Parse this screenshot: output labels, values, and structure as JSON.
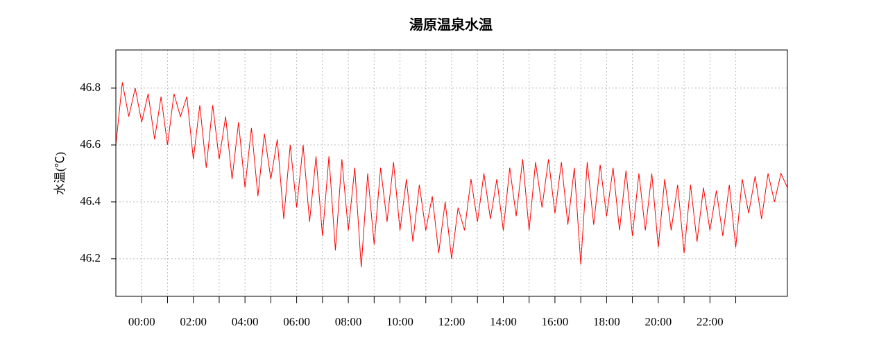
{
  "chart_data": {
    "type": "line",
    "title": "湯原温泉水温",
    "y_label": "水温(℃)",
    "x": [
      -1,
      -0.75,
      -0.5,
      -0.25,
      0,
      0.25,
      0.5,
      0.75,
      1,
      1.25,
      1.5,
      1.75,
      2,
      2.25,
      2.5,
      2.75,
      3,
      3.25,
      3.5,
      3.75,
      4,
      4.25,
      4.5,
      4.75,
      5,
      5.25,
      5.5,
      5.75,
      6,
      6.25,
      6.5,
      6.75,
      7,
      7.25,
      7.5,
      7.75,
      8,
      8.25,
      8.5,
      8.75,
      9,
      9.25,
      9.5,
      9.75,
      10,
      10.25,
      10.5,
      10.75,
      11,
      11.25,
      11.5,
      11.75,
      12,
      12.25,
      12.5,
      12.75,
      13,
      13.25,
      13.5,
      13.75,
      14,
      14.25,
      14.5,
      14.75,
      15,
      15.25,
      15.5,
      15.75,
      16,
      16.25,
      16.5,
      16.75,
      17,
      17.25,
      17.5,
      17.75,
      18,
      18.25,
      18.5,
      18.75,
      19,
      19.25,
      19.5,
      19.75,
      20,
      20.25,
      20.5,
      20.75,
      21,
      21.25,
      21.5,
      21.75,
      22,
      22.25,
      22.5,
      22.75,
      23,
      23.25,
      23.5,
      23.75,
      24,
      24.25,
      24.5,
      24.75,
      25
    ],
    "series": [
      {
        "color": "#ff0000",
        "values": [
          46.6,
          46.82,
          46.7,
          46.8,
          46.68,
          46.78,
          46.62,
          46.77,
          46.6,
          46.78,
          46.7,
          46.77,
          46.55,
          46.74,
          46.52,
          46.74,
          46.55,
          46.7,
          46.48,
          46.68,
          46.45,
          46.66,
          46.42,
          46.64,
          46.48,
          46.62,
          46.34,
          46.6,
          46.38,
          46.6,
          46.33,
          46.56,
          46.28,
          46.56,
          46.23,
          46.55,
          46.3,
          46.52,
          46.17,
          46.5,
          46.25,
          46.52,
          46.33,
          46.54,
          46.3,
          46.48,
          46.26,
          46.46,
          46.3,
          46.42,
          46.22,
          46.4,
          46.2,
          46.38,
          46.3,
          46.48,
          46.33,
          46.5,
          46.34,
          46.48,
          46.3,
          46.52,
          46.35,
          46.55,
          46.3,
          46.54,
          46.38,
          46.55,
          46.36,
          46.54,
          46.32,
          46.52,
          46.18,
          46.54,
          46.32,
          46.53,
          46.35,
          46.52,
          46.3,
          46.51,
          46.28,
          46.5,
          46.3,
          46.5,
          46.24,
          46.48,
          46.3,
          46.46,
          46.22,
          46.46,
          46.26,
          46.45,
          46.3,
          46.44,
          46.28,
          46.46,
          46.24,
          46.48,
          46.36,
          46.49,
          46.34,
          46.5,
          46.4,
          46.5,
          46.45
        ]
      }
    ],
    "xlim": [
      -1,
      25
    ],
    "xticks": [
      {
        "value": 0,
        "label": "00:00"
      },
      {
        "value": 2,
        "label": "02:00"
      },
      {
        "value": 4,
        "label": "04:00"
      },
      {
        "value": 6,
        "label": "06:00"
      },
      {
        "value": 8,
        "label": "08:00"
      },
      {
        "value": 10,
        "label": "10:00"
      },
      {
        "value": 12,
        "label": "12:00"
      },
      {
        "value": 14,
        "label": "14:00"
      },
      {
        "value": 16,
        "label": "16:00"
      },
      {
        "value": 18,
        "label": "18:00"
      },
      {
        "value": 20,
        "label": "20:00"
      },
      {
        "value": 22,
        "label": "22:00"
      }
    ],
    "xminor_ticks": [
      1,
      3,
      5,
      7,
      9,
      11,
      13,
      15,
      17,
      19,
      21,
      23
    ],
    "ylim": [
      46.068,
      46.934
    ],
    "yticks": [
      46.2,
      46.4,
      46.6,
      46.8
    ],
    "grid": true
  }
}
